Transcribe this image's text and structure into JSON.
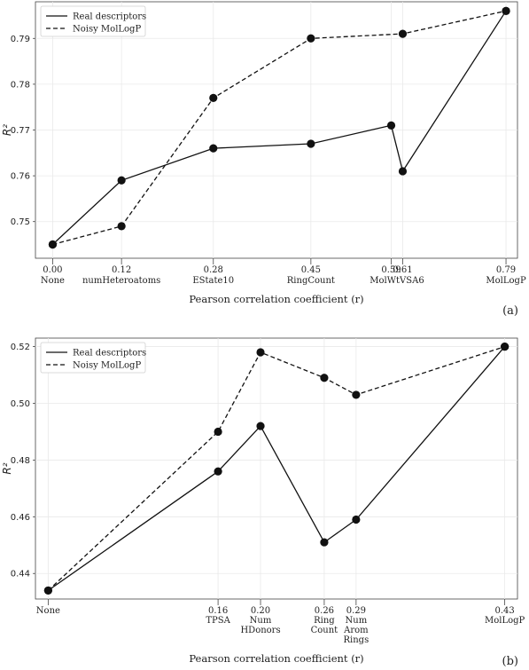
{
  "chart_data": [
    {
      "type": "line",
      "panel_label": "(a)",
      "xlabel": "Pearson correlation coefficient (r)",
      "ylabel": "R²",
      "ylim": [
        0.742,
        0.798
      ],
      "yticks": [
        "0.75",
        "0.76",
        "0.77",
        "0.78",
        "0.79"
      ],
      "grid": true,
      "legend_position": "top-left",
      "x_ticks": [
        {
          "r": 0.0,
          "value_label": "0.00",
          "names": [
            "None"
          ]
        },
        {
          "r": 0.12,
          "value_label": "0.12",
          "names": [
            "numHeteroatoms"
          ]
        },
        {
          "r": 0.28,
          "value_label": "0.28",
          "names": [
            "EState10"
          ]
        },
        {
          "r": 0.45,
          "value_label": "0.45",
          "names": [
            "RingCount"
          ]
        },
        {
          "r": 0.59,
          "value_label": "0.59",
          "names": []
        },
        {
          "r": 0.61,
          "value_label": "0.61",
          "names": []
        },
        {
          "r": 0.79,
          "value_label": "0.79",
          "names": [
            "MolLogP"
          ]
        }
      ],
      "x_name_extras": [
        {
          "text": "MolWtVSA6",
          "r": 0.6
        }
      ],
      "series": [
        {
          "name": "Real descriptors",
          "style": "solid",
          "x": [
            0.0,
            0.12,
            0.28,
            0.45,
            0.59,
            0.61,
            0.79
          ],
          "y": [
            0.745,
            0.759,
            0.766,
            0.767,
            0.771,
            0.761,
            0.796
          ]
        },
        {
          "name": "Noisy MolLogP",
          "style": "dashed",
          "x": [
            0.0,
            0.12,
            0.28,
            0.45,
            0.61,
            0.79
          ],
          "y": [
            0.745,
            0.749,
            0.777,
            0.79,
            0.791,
            0.796
          ]
        }
      ]
    },
    {
      "type": "line",
      "panel_label": "(b)",
      "xlabel": "Pearson correlation coefficient (r)",
      "ylabel": "R²",
      "ylim": [
        0.431,
        0.523
      ],
      "yticks": [
        "0.44",
        "0.46",
        "0.48",
        "0.50",
        "0.52"
      ],
      "grid": true,
      "legend_position": "top-left",
      "x_ticks": [
        {
          "r": 0.0,
          "value_label": "",
          "names": [
            "None"
          ]
        },
        {
          "r": 0.16,
          "value_label": "0.16",
          "names": [
            "TPSA"
          ]
        },
        {
          "r": 0.2,
          "value_label": "0.20",
          "names": [
            "Num",
            "HDonors"
          ]
        },
        {
          "r": 0.26,
          "value_label": "0.26",
          "names": [
            "Ring",
            "Count"
          ]
        },
        {
          "r": 0.29,
          "value_label": "0.29",
          "names": [
            "Num",
            "Arom",
            "Rings"
          ]
        },
        {
          "r": 0.43,
          "value_label": "0.43",
          "names": [
            "MolLogP"
          ]
        }
      ],
      "x_name_extras": [],
      "series": [
        {
          "name": "Real descriptors",
          "style": "solid",
          "x": [
            0.0,
            0.16,
            0.2,
            0.26,
            0.29,
            0.43
          ],
          "y": [
            0.434,
            0.476,
            0.492,
            0.451,
            0.459,
            0.52
          ]
        },
        {
          "name": "Noisy MolLogP",
          "style": "dashed",
          "x": [
            0.0,
            0.16,
            0.2,
            0.26,
            0.29,
            0.43
          ],
          "y": [
            0.434,
            0.49,
            0.518,
            0.509,
            0.503,
            0.52
          ]
        }
      ]
    }
  ]
}
